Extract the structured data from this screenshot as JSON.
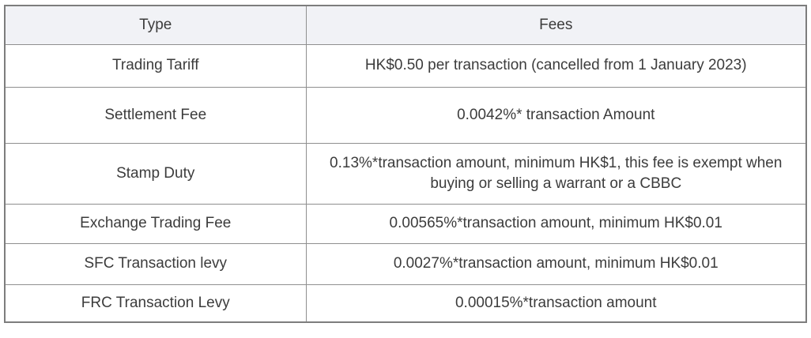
{
  "table": {
    "name": "securities-trading-fees-table",
    "columns": [
      {
        "label": "Type"
      },
      {
        "label": "Fees"
      }
    ],
    "rows": [
      {
        "type": "Trading Tariff",
        "fees": "HK$0.50 per transaction (cancelled from 1 January 2023)"
      },
      {
        "type": "Settlement Fee",
        "fees": "0.0042%* transaction Amount"
      },
      {
        "type": "Stamp Duty",
        "fees": "0.13%*transaction amount, minimum HK$1, this fee is exempt when buying or selling a warrant or a CBBC"
      },
      {
        "type": "Exchange Trading Fee",
        "fees": "0.00565%*transaction amount, minimum HK$0.01"
      },
      {
        "type": "SFC Transaction levy",
        "fees": "0.0027%*transaction amount, minimum HK$0.01"
      },
      {
        "type": "FRC Transaction Levy",
        "fees": "0.00015%*transaction amount"
      }
    ],
    "colors": {
      "header_bg": "#f1f2f6",
      "border_outer": "#7d7d7d",
      "border_inner": "#8f8f8f",
      "text": "#3c3c3c"
    }
  }
}
